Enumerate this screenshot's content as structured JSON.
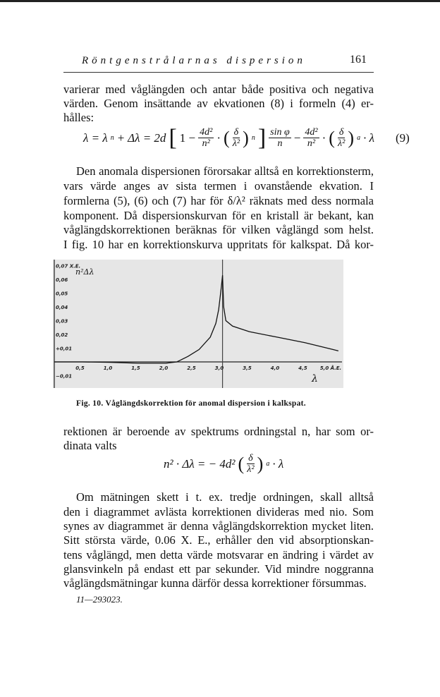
{
  "header": {
    "running_title": "Röntgenstrålarnas dispersion",
    "page_number": "161"
  },
  "para1": [
    "varierar med våglängden och antar både positiva och negativa",
    "värden. Genom insättande av ekvationen (8) i formeln (4) er-",
    "hålles:"
  ],
  "eq9": {
    "lhs": "λ = λ",
    "sub_n": "n",
    "plus": " + Δλ = 2d",
    "one_minus": "1 −",
    "num": "4d²",
    "den": "n²",
    "delta": "δ",
    "lambda2": "λ²",
    "sin_num": "sin φ",
    "sin_den": "n",
    "minus": "−",
    "sub_a": "a",
    "times_lambda": "· λ",
    "label": "(9)"
  },
  "para2": [
    "Den anomala dispersionen förorsakar alltså en korrektionsterm,",
    "vars värde anges av sista termen i ovanstående ekvation. I",
    "formlerna (5), (6) och (7) har för δ/λ² räknats med dess normala",
    "komponent. Då dispersionskurvan för en kristall är bekant, kan",
    "våglängdskorrektionen beräknas för vilken våglängd som helst.",
    "I fig. 10 har en korrektionskurva uppritats för kalkspat. Då kor-"
  ],
  "chart_data": {
    "type": "line",
    "title": "",
    "ylabel": "n²Δλ",
    "xlabel": "λ",
    "y_unit": "X.E.",
    "x_unit": "Å.E.",
    "xlim": [
      0,
      5.1
    ],
    "ylim": [
      -0.015,
      0.07
    ],
    "grid": false,
    "x_ticks": [
      {
        "v": 0.5,
        "label": "0,5"
      },
      {
        "v": 1.0,
        "label": "1,0"
      },
      {
        "v": 1.5,
        "label": "1,5"
      },
      {
        "v": 2.0,
        "label": "2,0"
      },
      {
        "v": 2.5,
        "label": "2,5"
      },
      {
        "v": 3.0,
        "label": "3,0"
      },
      {
        "v": 3.5,
        "label": "3,5"
      },
      {
        "v": 4.0,
        "label": "4,0"
      },
      {
        "v": 4.5,
        "label": "4,5"
      },
      {
        "v": 5.0,
        "label": "5,0 Å.E."
      }
    ],
    "y_ticks": [
      {
        "v": 0.07,
        "label": "0,07 X.E."
      },
      {
        "v": 0.06,
        "label": "0,06"
      },
      {
        "v": 0.05,
        "label": "0,05"
      },
      {
        "v": 0.04,
        "label": "0,04"
      },
      {
        "v": 0.03,
        "label": "0,03"
      },
      {
        "v": 0.02,
        "label": "0,02"
      },
      {
        "v": 0.01,
        "label": "+0,01"
      },
      {
        "v": -0.01,
        "label": "−0,01"
      }
    ],
    "vertical_marker": 3.02,
    "x": [
      0,
      0.5,
      1.0,
      1.5,
      2.0,
      2.2,
      2.4,
      2.6,
      2.8,
      2.9,
      2.95,
      3.0,
      3.02,
      3.04,
      3.08,
      3.2,
      3.5,
      4.0,
      4.5,
      5.0,
      5.1
    ],
    "y": [
      0,
      0,
      -0.0003,
      -0.001,
      -0.001,
      0,
      0.004,
      0.009,
      0.018,
      0.028,
      0.038,
      0.055,
      0.063,
      0.04,
      0.03,
      0.026,
      0.022,
      0.018,
      0.014,
      0.009,
      0.008
    ],
    "colors": {
      "background": "#e6e6e6",
      "line": "#111111"
    }
  },
  "caption": "Fig. 10.   Våglängdskorrektion för anomal dispersion i kalkspat.",
  "para3": [
    "rektionen är beroende av spektrums ordningstal n, har som or-",
    "dinata valts"
  ],
  "eq2": {
    "lhs": "n² · Δλ = − 4d²",
    "delta": "δ",
    "lambda2": "λ²",
    "sub_a": "a",
    "times_lambda": "· λ"
  },
  "para4": [
    "Om mätningen skett i t. ex. tredje ordningen, skall alltså",
    "den i diagrammet avlästa korrektionen divideras med nio. Som",
    "synes av diagrammet är denna våglängdskorrektion mycket liten.",
    "Sitt största värde, 0.06 X. E., erhåller den vid absorptionskan-",
    "tens våglängd, men detta värde motsvarar en ändring i värdet av",
    "glansvinkeln på endast ett par sekunder. Vid mindre noggranna",
    "våglängdsmätningar kunna därför dessa korrektioner försummas."
  ],
  "footer": {
    "signature": "11—293023."
  }
}
